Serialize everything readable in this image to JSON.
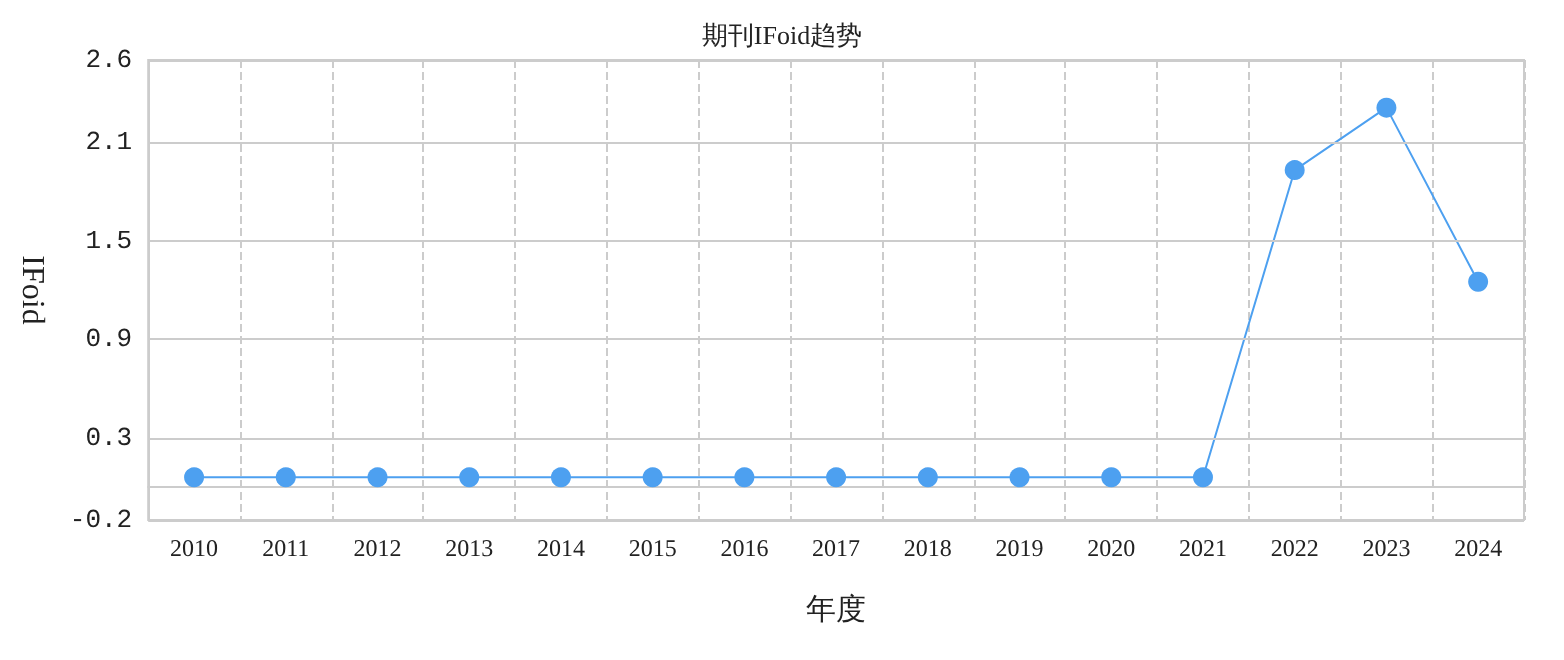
{
  "chart_data": {
    "type": "line",
    "title": "期刊IFoid趋势",
    "xlabel": "年度",
    "ylabel": "IFoid",
    "categories": [
      "2010",
      "2011",
      "2012",
      "2013",
      "2014",
      "2015",
      "2016",
      "2017",
      "2018",
      "2019",
      "2020",
      "2021",
      "2022",
      "2023",
      "2024"
    ],
    "series": [
      {
        "color": "#4da0f0",
        "values": [
          0.06,
          0.06,
          0.06,
          0.06,
          0.06,
          0.06,
          0.06,
          0.06,
          0.06,
          0.06,
          0.06,
          0.06,
          1.93,
          2.31,
          1.25
        ]
      }
    ],
    "ylim": [
      -0.2,
      2.6
    ],
    "yticks": [
      -0.2,
      0.3,
      0.9,
      1.5,
      2.1,
      2.6
    ],
    "grid": true,
    "marker": "circle",
    "line_style": "solid"
  }
}
